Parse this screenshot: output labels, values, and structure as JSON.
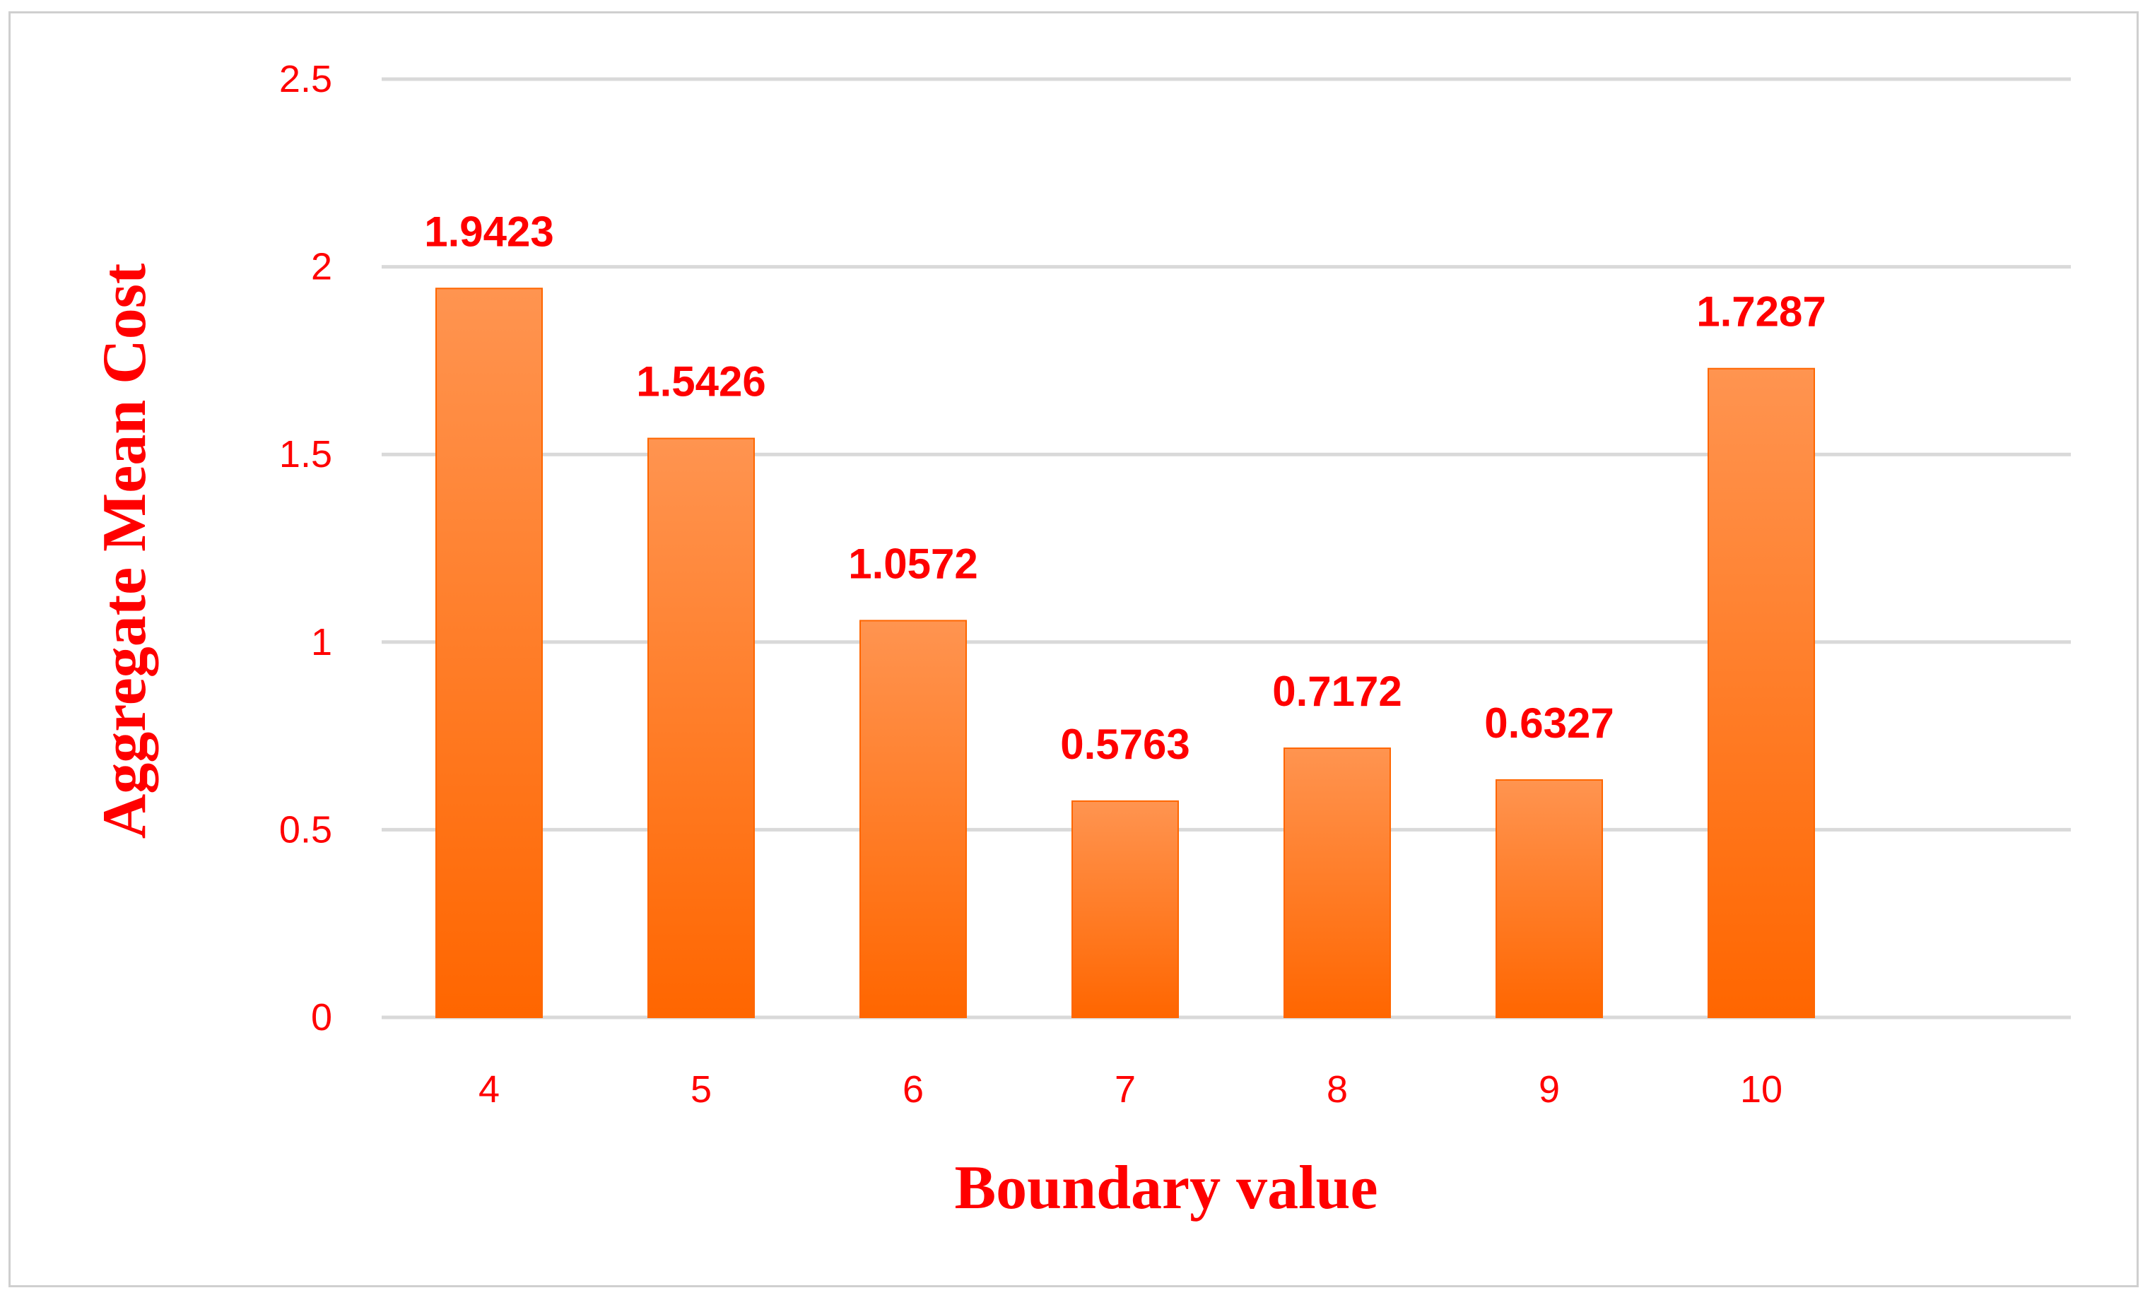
{
  "chart_data": {
    "type": "bar",
    "categories": [
      "4",
      "5",
      "6",
      "7",
      "8",
      "9",
      "10"
    ],
    "values": [
      1.9423,
      1.5426,
      1.0572,
      0.5763,
      0.7172,
      0.6327,
      1.7287
    ],
    "data_labels": [
      "1.9423",
      "1.5426",
      "1.0572",
      "0.5763",
      "0.7172",
      "0.6327",
      "1.7287"
    ],
    "y_ticks": [
      "0",
      "0.5",
      "1",
      "1.5",
      "2",
      "2.5"
    ],
    "y_tick_values": [
      0,
      0.5,
      1,
      1.5,
      2,
      2.5
    ],
    "xlabel": "Boundary value",
    "ylabel": "Aggregate Mean Cost",
    "ylim": [
      0,
      2.5
    ],
    "grid": true,
    "legend": "none"
  },
  "colors": {
    "text": "#ff0000",
    "bar_top": "#ff9450",
    "bar_bottom": "#ff6600",
    "grid": "#d9d9d9",
    "frame": "#cfcfcf"
  }
}
